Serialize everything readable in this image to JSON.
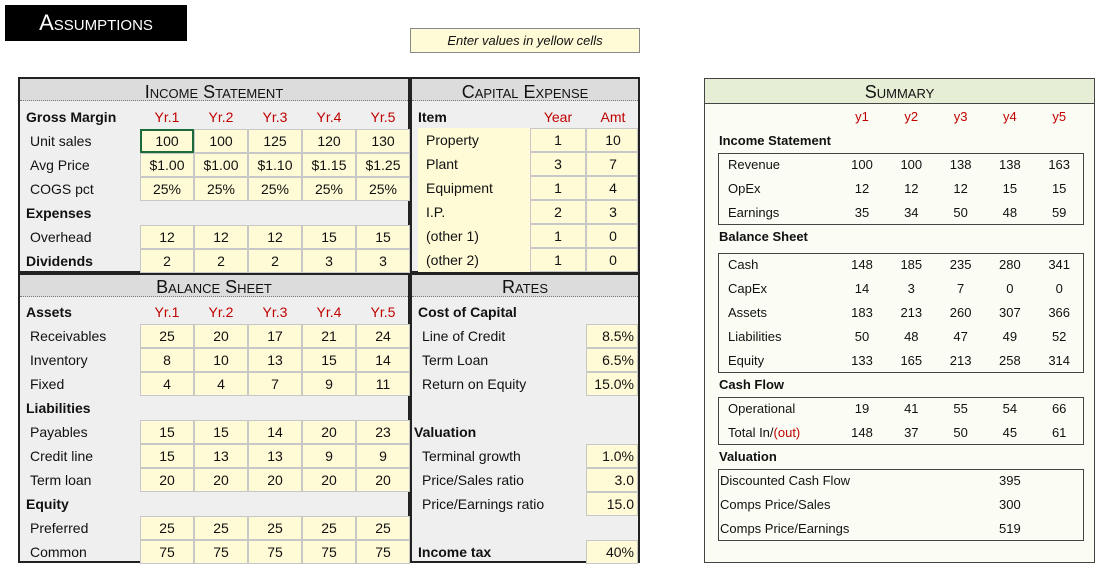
{
  "title": "Assumptions",
  "note": "Enter values in yellow cells",
  "income_statement": {
    "title": "Income Statement",
    "header": "Gross Margin",
    "years": [
      "Yr.1",
      "Yr.2",
      "Yr.3",
      "Yr.4",
      "Yr.5"
    ],
    "rows": [
      {
        "label": "Unit sales",
        "values": [
          100,
          100,
          125,
          120,
          130
        ]
      },
      {
        "label": "Avg Price",
        "values": [
          "$1.00",
          "$1.00",
          "$1.10",
          "$1.15",
          "$1.25"
        ]
      },
      {
        "label": "COGS pct",
        "values": [
          "25%",
          "25%",
          "25%",
          "25%",
          "25%"
        ]
      },
      {
        "label": "Expenses"
      },
      {
        "label": "Overhead",
        "values": [
          12,
          12,
          12,
          15,
          15
        ]
      },
      {
        "label": "Dividends",
        "values": [
          2,
          2,
          2,
          3,
          3
        ]
      }
    ]
  },
  "capital_expense": {
    "title": "Capital Expense",
    "headers": [
      "Item",
      "Year",
      "Amt"
    ],
    "rows": [
      [
        "Property",
        1,
        10
      ],
      [
        "Plant",
        3,
        7
      ],
      [
        "Equipment",
        1,
        4
      ],
      [
        "I.P.",
        2,
        3
      ],
      [
        "(other 1)",
        1,
        0
      ],
      [
        "(other 2)",
        1,
        0
      ]
    ]
  },
  "balance_sheet": {
    "title": "Balance Sheet",
    "header": "Assets",
    "years": [
      "Yr.1",
      "Yr.2",
      "Yr.3",
      "Yr.4",
      "Yr.5"
    ],
    "rows": [
      {
        "label": "Receivables",
        "values": [
          25,
          20,
          17,
          21,
          24
        ]
      },
      {
        "label": "Inventory",
        "values": [
          8,
          10,
          13,
          15,
          14
        ]
      },
      {
        "label": "Fixed",
        "values": [
          4,
          4,
          7,
          9,
          11
        ]
      },
      {
        "label": "Liabilities"
      },
      {
        "label": "Payables",
        "values": [
          15,
          15,
          14,
          20,
          23
        ]
      },
      {
        "label": "Credit line",
        "values": [
          15,
          13,
          13,
          9,
          9
        ]
      },
      {
        "label": "Term loan",
        "values": [
          20,
          20,
          20,
          20,
          20
        ]
      },
      {
        "label": "Equity"
      },
      {
        "label": "Preferred",
        "values": [
          25,
          25,
          25,
          25,
          25
        ]
      },
      {
        "label": "Common",
        "values": [
          75,
          75,
          75,
          75,
          75
        ]
      }
    ]
  },
  "rates": {
    "title": "Rates",
    "rows": [
      {
        "label": "Cost of Capital"
      },
      {
        "label": "Line of Credit",
        "value": "8.5%"
      },
      {
        "label": "Term Loan",
        "value": "6.5%"
      },
      {
        "label": "Return on Equity",
        "value": "15.0%"
      },
      {
        "label": "Valuation"
      },
      {
        "label": "Terminal growth",
        "value": "1.0%"
      },
      {
        "label": "Price/Sales ratio",
        "value": "3.0"
      },
      {
        "label": "Price/Earnings ratio",
        "value": "15.0"
      },
      {
        "label": "Income tax",
        "value": "40%"
      }
    ]
  },
  "summary": {
    "title": "Summary",
    "years": [
      "y1",
      "y2",
      "y3",
      "y4",
      "y5"
    ],
    "sections": [
      {
        "label": "Income Statement",
        "rows": [
          {
            "label": "Revenue",
            "values": [
              100,
              100,
              138,
              138,
              163
            ]
          },
          {
            "label": "OpEx",
            "values": [
              12,
              12,
              12,
              15,
              15
            ]
          },
          {
            "label": "Earnings",
            "values": [
              35,
              34,
              50,
              48,
              59
            ]
          }
        ]
      },
      {
        "label": "Balance Sheet",
        "rows": [
          {
            "label": "Cash",
            "values": [
              148,
              185,
              235,
              280,
              341
            ]
          },
          {
            "label": "CapEx",
            "values": [
              14,
              3,
              7,
              0,
              0
            ]
          },
          {
            "label": "Assets",
            "values": [
              183,
              213,
              260,
              307,
              366
            ]
          },
          {
            "label": "Liabilities",
            "values": [
              50,
              48,
              47,
              49,
              52
            ]
          },
          {
            "label": "Equity",
            "values": [
              133,
              165,
              213,
              258,
              314
            ]
          }
        ]
      },
      {
        "label": "Cash Flow",
        "rows": [
          {
            "label": "Operational",
            "values": [
              19,
              41,
              55,
              54,
              66
            ]
          },
          {
            "label": "Total In/",
            "label_note": "(out)",
            "values": [
              148,
              37,
              50,
              45,
              61
            ]
          }
        ]
      },
      {
        "label": "Valuation",
        "rows": [
          {
            "label": "Discounted Cash Flow",
            "value": 395
          },
          {
            "label": "Comps Price/Sales",
            "value": 300
          },
          {
            "label": "Comps Price/Earnings",
            "value": 519
          }
        ]
      }
    ]
  }
}
